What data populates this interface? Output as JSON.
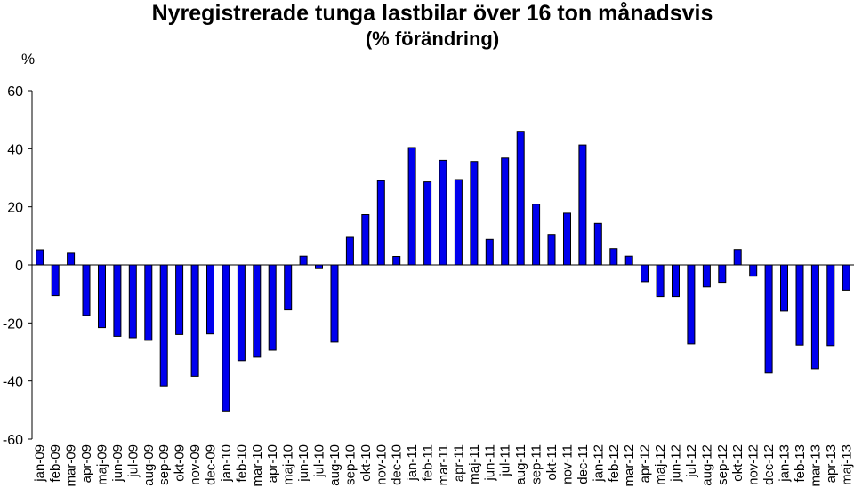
{
  "chart_data": {
    "type": "bar",
    "title": "Nyregistrerade tunga lastbilar över 16 ton månadsvis",
    "subtitle": "(% förändring)",
    "ylabel": "%",
    "xlabel": "",
    "ylim": [
      -60,
      60
    ],
    "yticks": [
      60,
      40,
      20,
      0,
      -20,
      -40,
      -60
    ],
    "grid": false,
    "legend": "none",
    "bar_color": "#0000ee",
    "bar_edge_color": "#000000",
    "categories": [
      "jan-09",
      "feb-09",
      "mar-09",
      "apr-09",
      "maj-09",
      "jun-09",
      "jul-09",
      "aug-09",
      "sep-09",
      "okt-09",
      "nov-09",
      "dec-09",
      "jan-10",
      "feb-10",
      "mar-10",
      "apr-10",
      "maj-10",
      "jun-10",
      "jul-10",
      "aug-10",
      "sep-10",
      "okt-10",
      "nov-10",
      "dec-10",
      "jan-11",
      "feb-11",
      "mar-11",
      "apr-11",
      "maj-11",
      "jun-11",
      "jul-11",
      "aug-11",
      "sep-11",
      "okt-11",
      "nov-11",
      "dec-11",
      "jan-12",
      "feb-12",
      "mar-12",
      "apr-12",
      "maj-12",
      "jun-12",
      "jul-12",
      "aug-12",
      "sep-12",
      "okt-12",
      "nov-12",
      "dec-12",
      "jan-13",
      "feb-13",
      "mar-13",
      "apr-13",
      "maj-13"
    ],
    "values": [
      5.2,
      -10.6,
      4.0,
      -17.4,
      -21.6,
      -24.6,
      -25.1,
      -26.0,
      -41.7,
      -24.0,
      -38.4,
      -23.8,
      -50.3,
      -33.0,
      -31.8,
      -29.4,
      -15.5,
      3.0,
      -1.3,
      -26.6,
      9.5,
      17.3,
      29.0,
      2.9,
      40.4,
      28.6,
      36.0,
      29.4,
      35.6,
      8.8,
      36.8,
      46.0,
      20.9,
      10.5,
      17.8,
      41.3,
      14.3,
      5.6,
      3.0,
      -5.8,
      -10.9,
      -10.9,
      -27.2,
      -7.6,
      -6.0,
      5.3,
      -3.9,
      -37.3,
      -15.9,
      -27.6,
      -35.8,
      -27.8,
      -8.7
    ]
  }
}
